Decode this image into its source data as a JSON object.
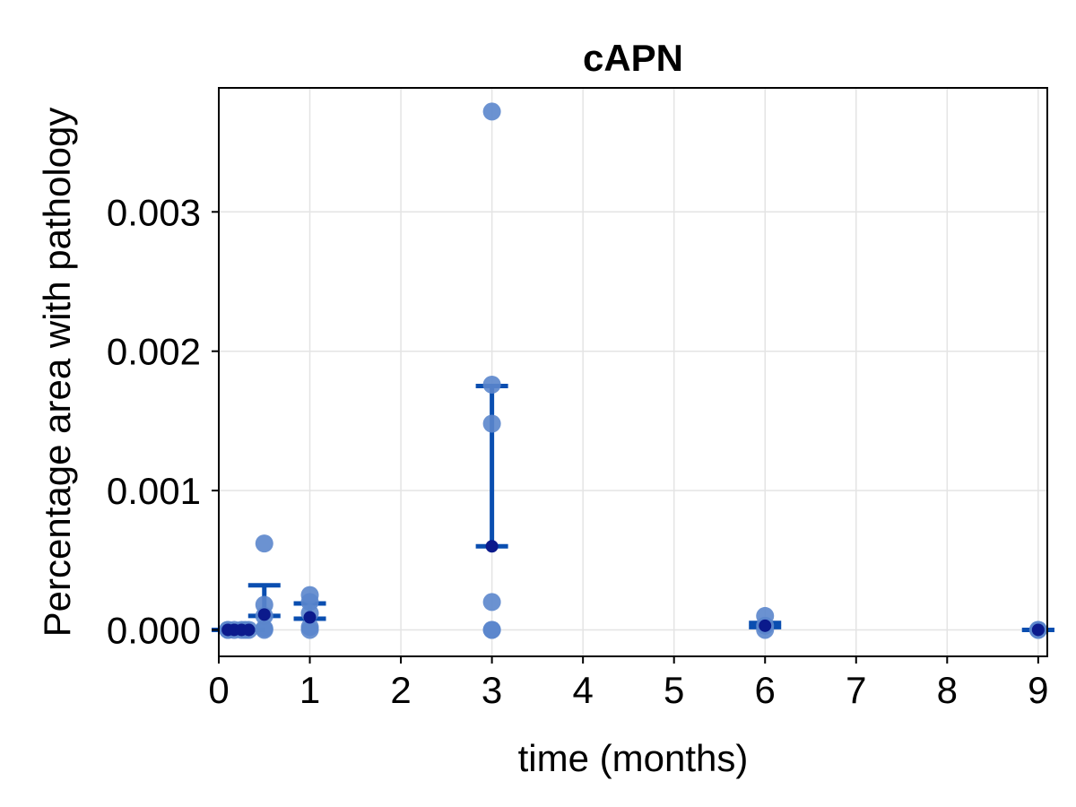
{
  "chart_data": {
    "type": "scatter",
    "title": "cAPN",
    "xlabel": "time (months)",
    "ylabel": "Percentage area with pathology",
    "xlim": [
      0,
      9.1
    ],
    "ylim": [
      -0.00019,
      0.00389
    ],
    "xticks": [
      0,
      1,
      2,
      3,
      4,
      5,
      6,
      7,
      8,
      9
    ],
    "xtick_labels": [
      "0",
      "1",
      "2",
      "3",
      "4",
      "5",
      "6",
      "7",
      "8",
      "9"
    ],
    "yticks": [
      0.0,
      0.001,
      0.002,
      0.003
    ],
    "ytick_labels": [
      "0.000",
      "0.001",
      "0.002",
      "0.003"
    ],
    "grid": true,
    "colors": {
      "points": "#5b86cc",
      "mean": "#0b1a8c",
      "errorbar": "#0a4eb0"
    },
    "points": [
      {
        "x": 0.1,
        "y": 0.0
      },
      {
        "x": 0.1,
        "y": 0.0
      },
      {
        "x": 0.17,
        "y": 0.0
      },
      {
        "x": 0.25,
        "y": 0.0
      },
      {
        "x": 0.29,
        "y": 0.0
      },
      {
        "x": 0.33,
        "y": 0.0
      },
      {
        "x": 0.5,
        "y": 0.00062
      },
      {
        "x": 0.5,
        "y": 0.00018
      },
      {
        "x": 0.5,
        "y": 0.0001
      },
      {
        "x": 0.5,
        "y": 1e-05
      },
      {
        "x": 0.5,
        "y": 0.0
      },
      {
        "x": 1,
        "y": 0.00025
      },
      {
        "x": 1,
        "y": 0.0002
      },
      {
        "x": 1,
        "y": 0.00012
      },
      {
        "x": 1,
        "y": 2e-05
      },
      {
        "x": 1,
        "y": 0.0
      },
      {
        "x": 3,
        "y": 0.00372
      },
      {
        "x": 3,
        "y": 0.00176
      },
      {
        "x": 3,
        "y": 0.00148
      },
      {
        "x": 3,
        "y": 0.0002
      },
      {
        "x": 3,
        "y": 0.0
      },
      {
        "x": 3,
        "y": 0.0
      },
      {
        "x": 6,
        "y": 0.0001
      },
      {
        "x": 6,
        "y": 3e-05
      },
      {
        "x": 6,
        "y": 0.0
      },
      {
        "x": 9,
        "y": 0.0
      },
      {
        "x": 9,
        "y": 0.0
      }
    ],
    "means": [
      {
        "x": 0.1,
        "y": 0.0
      },
      {
        "x": 0.17,
        "y": 0.0
      },
      {
        "x": 0.25,
        "y": 0.0
      },
      {
        "x": 0.33,
        "y": 0.0
      },
      {
        "x": 0.5,
        "y": 0.00011
      },
      {
        "x": 1,
        "y": 9e-05
      },
      {
        "x": 3,
        "y": 0.0006
      },
      {
        "x": 6,
        "y": 3e-05
      },
      {
        "x": 9,
        "y": 0.0
      }
    ],
    "error_bars": [
      {
        "x": 0.1,
        "low": 0.0,
        "high": 0.0
      },
      {
        "x": 0.17,
        "low": 0.0,
        "high": 0.0
      },
      {
        "x": 0.25,
        "low": 0.0,
        "high": 0.0
      },
      {
        "x": 0.33,
        "low": 0.0,
        "high": 0.0
      },
      {
        "x": 0.5,
        "low": 0.0001,
        "high": 0.00032
      },
      {
        "x": 1,
        "low": 8e-05,
        "high": 0.00019
      },
      {
        "x": 3,
        "low": 0.0006,
        "high": 0.00175
      },
      {
        "x": 6,
        "low": 2e-05,
        "high": 5e-05
      },
      {
        "x": 9,
        "low": 0.0,
        "high": 0.0
      }
    ]
  }
}
